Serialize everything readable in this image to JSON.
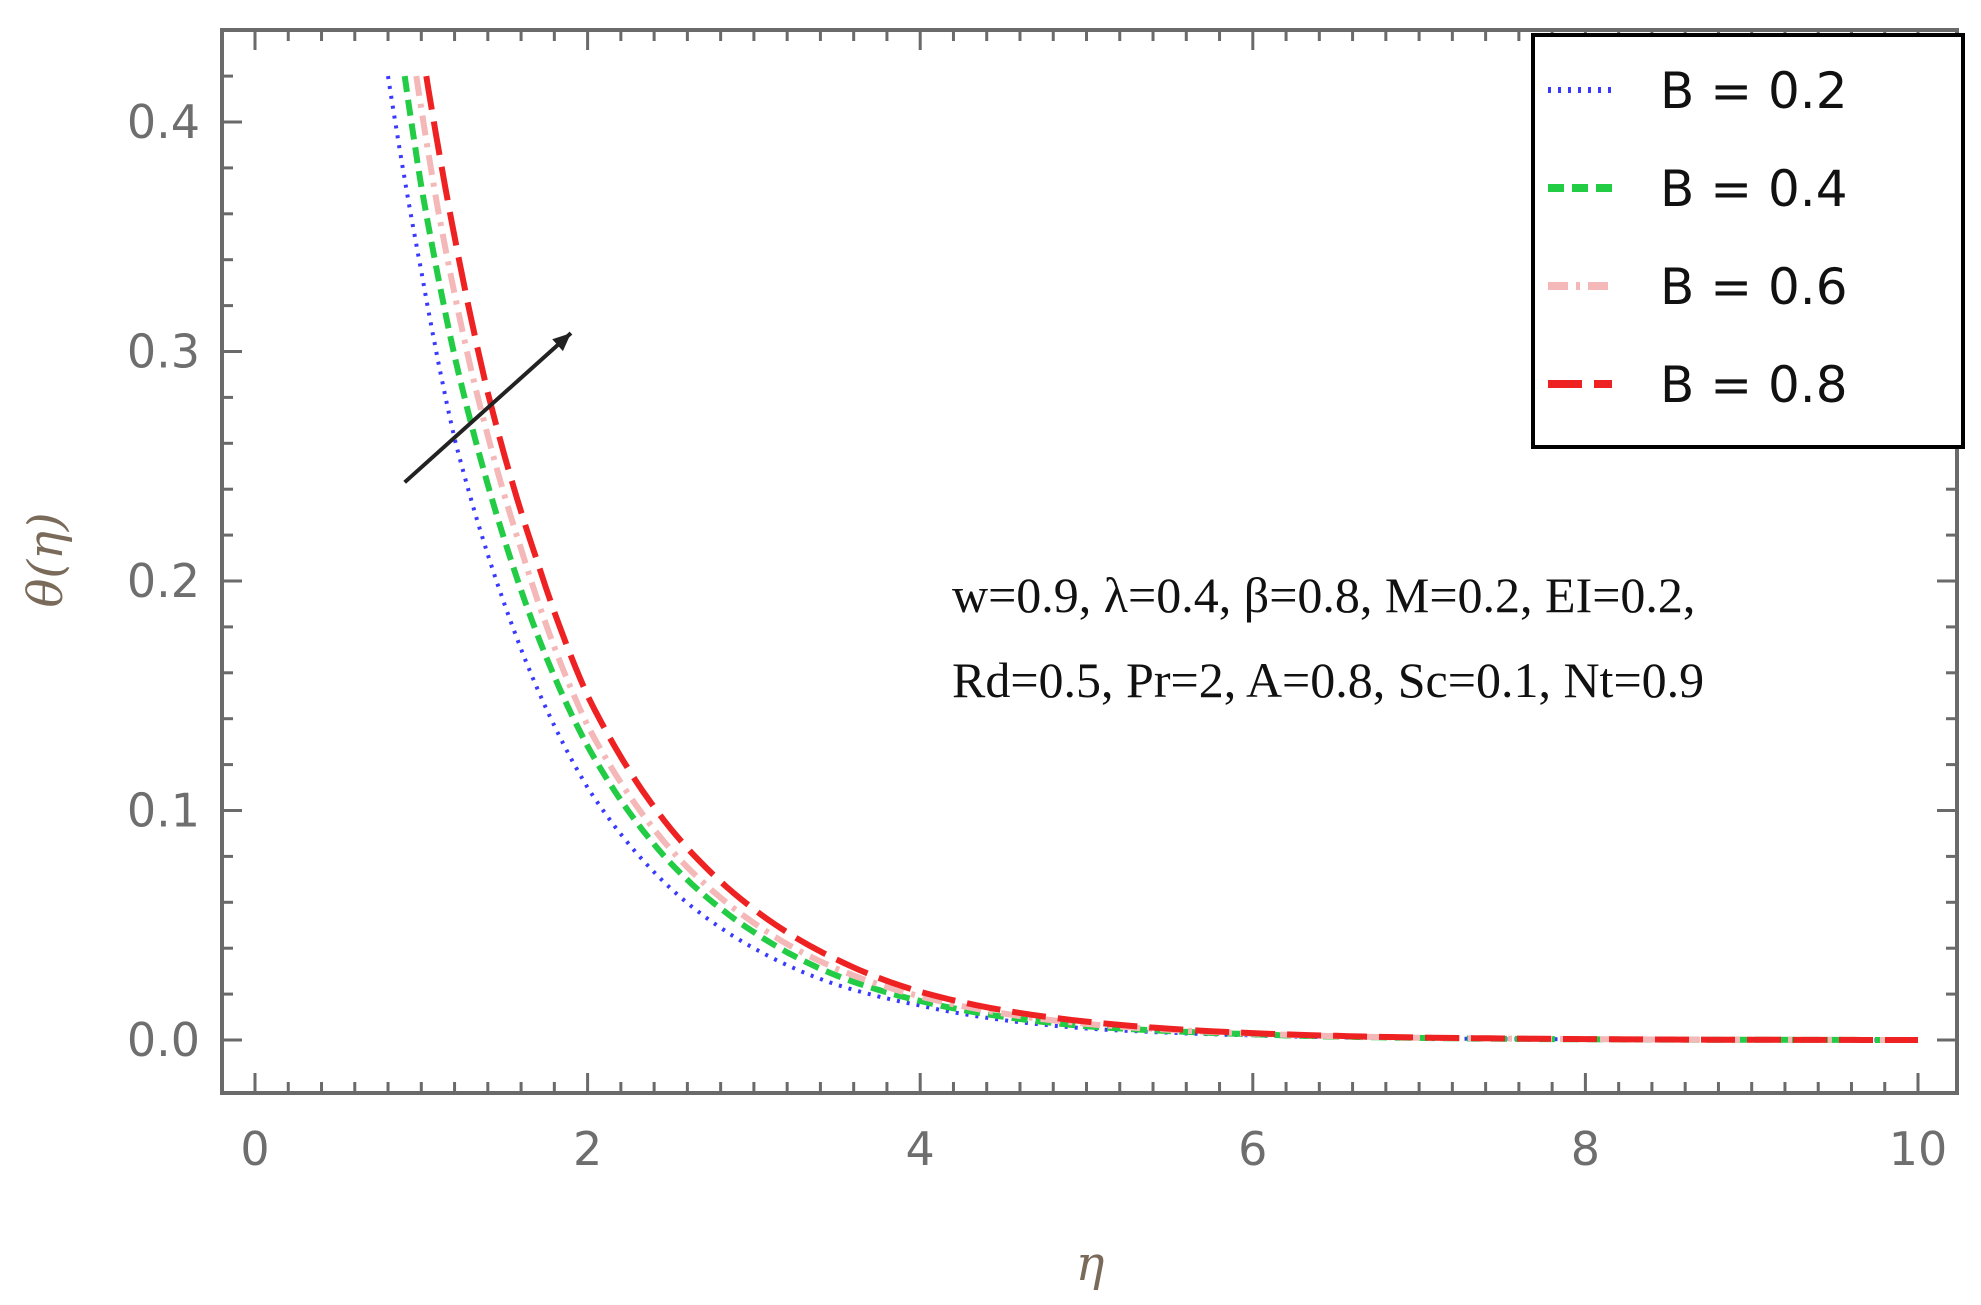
{
  "chart_data": {
    "type": "line",
    "title": "",
    "xlabel": "η",
    "ylabel": "θ(η)",
    "xlim": [
      0,
      10
    ],
    "ylim": [
      0,
      0.44
    ],
    "xticks": [
      "0",
      "2",
      "4",
      "6",
      "8",
      "10"
    ],
    "yticks": [
      "0.0",
      "0.1",
      "0.2",
      "0.3",
      "0.4"
    ],
    "grid": false,
    "legend_position": "top-right",
    "series": [
      {
        "name": "B = 0.2",
        "color": "#3a3aff",
        "dash": "dotted",
        "x": [
          0.8,
          1.0,
          1.2,
          1.5,
          2.0,
          2.5,
          3.0,
          3.5,
          4.0,
          5.0,
          6.0,
          7.0,
          8.0,
          9.0,
          10.0
        ],
        "y": [
          0.42,
          0.335,
          0.262,
          0.19,
          0.11,
          0.066,
          0.04,
          0.024,
          0.015,
          0.005,
          0.002,
          0.0007,
          0.0003,
          0.0001,
          0.0
        ]
      },
      {
        "name": "B = 0.4",
        "color": "#22cc44",
        "dash": "dashed",
        "x": [
          0.9,
          1.0,
          1.2,
          1.5,
          2.0,
          2.5,
          3.0,
          3.5,
          4.0,
          5.0,
          6.0,
          7.0,
          8.0,
          9.0,
          10.0
        ],
        "y": [
          0.42,
          0.372,
          0.298,
          0.218,
          0.128,
          0.077,
          0.047,
          0.028,
          0.017,
          0.006,
          0.0025,
          0.0009,
          0.0003,
          0.0001,
          0.0
        ]
      },
      {
        "name": "B = 0.6",
        "color": "#f4b8b8",
        "dash": "dashdot",
        "x": [
          0.97,
          1.1,
          1.3,
          1.6,
          2.0,
          2.5,
          3.0,
          3.5,
          4.0,
          5.0,
          6.0,
          7.0,
          8.0,
          9.0,
          10.0
        ],
        "y": [
          0.42,
          0.362,
          0.292,
          0.214,
          0.137,
          0.083,
          0.051,
          0.031,
          0.019,
          0.007,
          0.0028,
          0.001,
          0.0004,
          0.0001,
          0.0
        ]
      },
      {
        "name": "B = 0.8",
        "color": "#ee2222",
        "dash": "longdash",
        "x": [
          1.03,
          1.2,
          1.4,
          1.7,
          2.0,
          2.5,
          3.0,
          3.5,
          4.0,
          5.0,
          6.0,
          7.0,
          8.0,
          9.0,
          10.0
        ],
        "y": [
          0.42,
          0.35,
          0.282,
          0.208,
          0.15,
          0.092,
          0.057,
          0.035,
          0.021,
          0.008,
          0.003,
          0.0011,
          0.0004,
          0.0001,
          0.0
        ]
      }
    ],
    "arrow": {
      "from": [
        0.9,
        0.243
      ],
      "to": [
        1.9,
        0.308
      ],
      "color": "#222222"
    },
    "annotation_lines": [
      "w=0.9, λ=0.4, β=0.8, M=0.2, EI=0.2,",
      "Rd=0.5, Pr=2, A=0.8, Sc=0.1, Nt=0.9"
    ]
  }
}
